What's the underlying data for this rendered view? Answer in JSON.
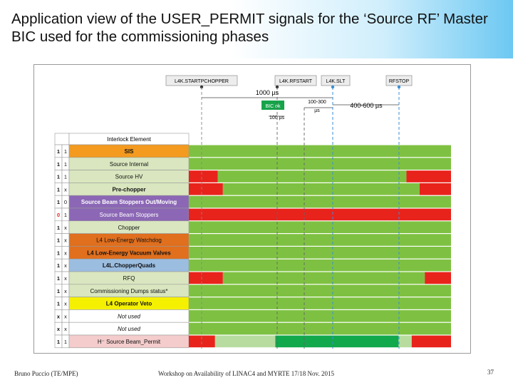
{
  "slide": {
    "title": "Application view of the USER_PERMIT signals for the ‘Source RF’ Master BIC used for the commissioning phases",
    "footer_left": "Bruno Puccio (TE/MPE)",
    "footer_mid": "Workshop on Availability of LINAC4 and MYRTE    17/18 Nov. 2015",
    "page_number": "37"
  },
  "diagram": {
    "header": "Interlock Element",
    "colors": {
      "green": "#7ec142",
      "red": "#e8231c",
      "darkgreen": "#12a84c",
      "lightgreen": "#b8dca0"
    },
    "events": [
      {
        "label": "L4K.STARTPCHOPPER"
      },
      {
        "label": "L4K.RFSTART"
      },
      {
        "label": "L4K.SLT"
      },
      {
        "label": "RFSTOP"
      }
    ],
    "annotations": {
      "d1000": "1000 µs",
      "d100_300": "100-300\nµs",
      "d400_600": "400-600 µs",
      "bicok": "BIC ok",
      "d100": "100 µs"
    },
    "rows": [
      {
        "b1": "1",
        "b2": "1",
        "name": "SIS",
        "color": "#f39a1f",
        "bold": true,
        "italic": false,
        "red_b1": false
      },
      {
        "b1": "1",
        "b2": "1",
        "name": "Source Internal",
        "color": "#d9e6bf",
        "bold": false,
        "italic": false,
        "red_b1": false
      },
      {
        "b1": "1",
        "b2": "1",
        "name": "Source HV",
        "color": "#d9e6bf",
        "bold": false,
        "italic": false,
        "red_b1": false
      },
      {
        "b1": "1",
        "b2": "x",
        "name": "Pre-chopper",
        "color": "#d9e6bf",
        "bold": true,
        "italic": false,
        "red_b1": false
      },
      {
        "b1": "1",
        "b2": "0",
        "name": "Source Beam Stoppers Out/Moving",
        "color": "#8b67b5",
        "bold": true,
        "italic": false,
        "red_b1": false,
        "white": true
      },
      {
        "b1": "0",
        "b2": "1",
        "name": "Source Beam Stoppers",
        "color": "#8b67b5",
        "bold": false,
        "italic": false,
        "red_b1": true,
        "white": true
      },
      {
        "b1": "1",
        "b2": "x",
        "name": "Chopper",
        "color": "#d9e6bf",
        "bold": false,
        "italic": false,
        "red_b1": false
      },
      {
        "b1": "1",
        "b2": "x",
        "name": "L4 Low-Energy Watchdog",
        "color": "#e06f1e",
        "bold": false,
        "italic": false,
        "red_b1": false
      },
      {
        "b1": "1",
        "b2": "x",
        "name": "L4 Low-Energy Vacuum Valves",
        "color": "#e06f1e",
        "bold": true,
        "italic": false,
        "red_b1": false
      },
      {
        "b1": "1",
        "b2": "x",
        "name": "L4L.ChopperQuads",
        "color": "#9bbde0",
        "bold": true,
        "italic": false,
        "red_b1": false
      },
      {
        "b1": "1",
        "b2": "x",
        "name": "RFQ",
        "color": "#d9e6bf",
        "bold": false,
        "italic": false,
        "red_b1": false
      },
      {
        "b1": "1",
        "b2": "x",
        "name": "Commissioning Dumps status*",
        "color": "#d9e6bf",
        "bold": false,
        "italic": false,
        "red_b1": false
      },
      {
        "b1": "1",
        "b2": "x",
        "name": "L4 Operator Veto",
        "color": "#f5f000",
        "bold": true,
        "italic": false,
        "red_b1": false
      },
      {
        "b1": "x",
        "b2": "x",
        "name": "Not used",
        "color": "#ffffff",
        "bold": false,
        "italic": true,
        "red_b1": false
      },
      {
        "b1": "x",
        "b2": "x",
        "name": "Not used",
        "color": "#ffffff",
        "bold": false,
        "italic": true,
        "red_b1": false
      },
      {
        "b1": "1",
        "b2": "1",
        "name": "H⁻ Source Beam_Permit",
        "color": "#f4cccc",
        "bold": false,
        "italic": false,
        "red_b1": false
      }
    ],
    "row_segments": [
      [
        [
          "green",
          0,
          1
        ]
      ],
      [
        [
          "green",
          0,
          1
        ]
      ],
      [
        [
          "red",
          0,
          0.11
        ],
        [
          "green",
          0.11,
          0.83
        ],
        [
          "red",
          0.83,
          1
        ]
      ],
      [
        [
          "red",
          0,
          0.13
        ],
        [
          "green",
          0.13,
          0.88
        ],
        [
          "red",
          0.88,
          1
        ]
      ],
      [
        [
          "green",
          0,
          1
        ]
      ],
      [
        [
          "red",
          0,
          1
        ]
      ],
      [
        [
          "green",
          0,
          1
        ]
      ],
      [
        [
          "green",
          0,
          1
        ]
      ],
      [
        [
          "green",
          0,
          1
        ]
      ],
      [
        [
          "green",
          0,
          1
        ]
      ],
      [
        [
          "red",
          0,
          0.13
        ],
        [
          "green",
          0.13,
          0.9
        ],
        [
          "red",
          0.9,
          1
        ]
      ],
      [
        [
          "green",
          0,
          1
        ]
      ],
      [
        [
          "green",
          0,
          1
        ]
      ],
      [
        [
          "green",
          0,
          1
        ]
      ],
      [
        [
          "green",
          0,
          1
        ]
      ],
      [
        [
          "red",
          0,
          0.1
        ],
        [
          "lightgreen",
          0.1,
          0.33
        ],
        [
          "darkgreen",
          0.33,
          0.8
        ],
        [
          "lightgreen",
          0.8,
          0.85
        ],
        [
          "red",
          0.85,
          1
        ]
      ]
    ]
  }
}
